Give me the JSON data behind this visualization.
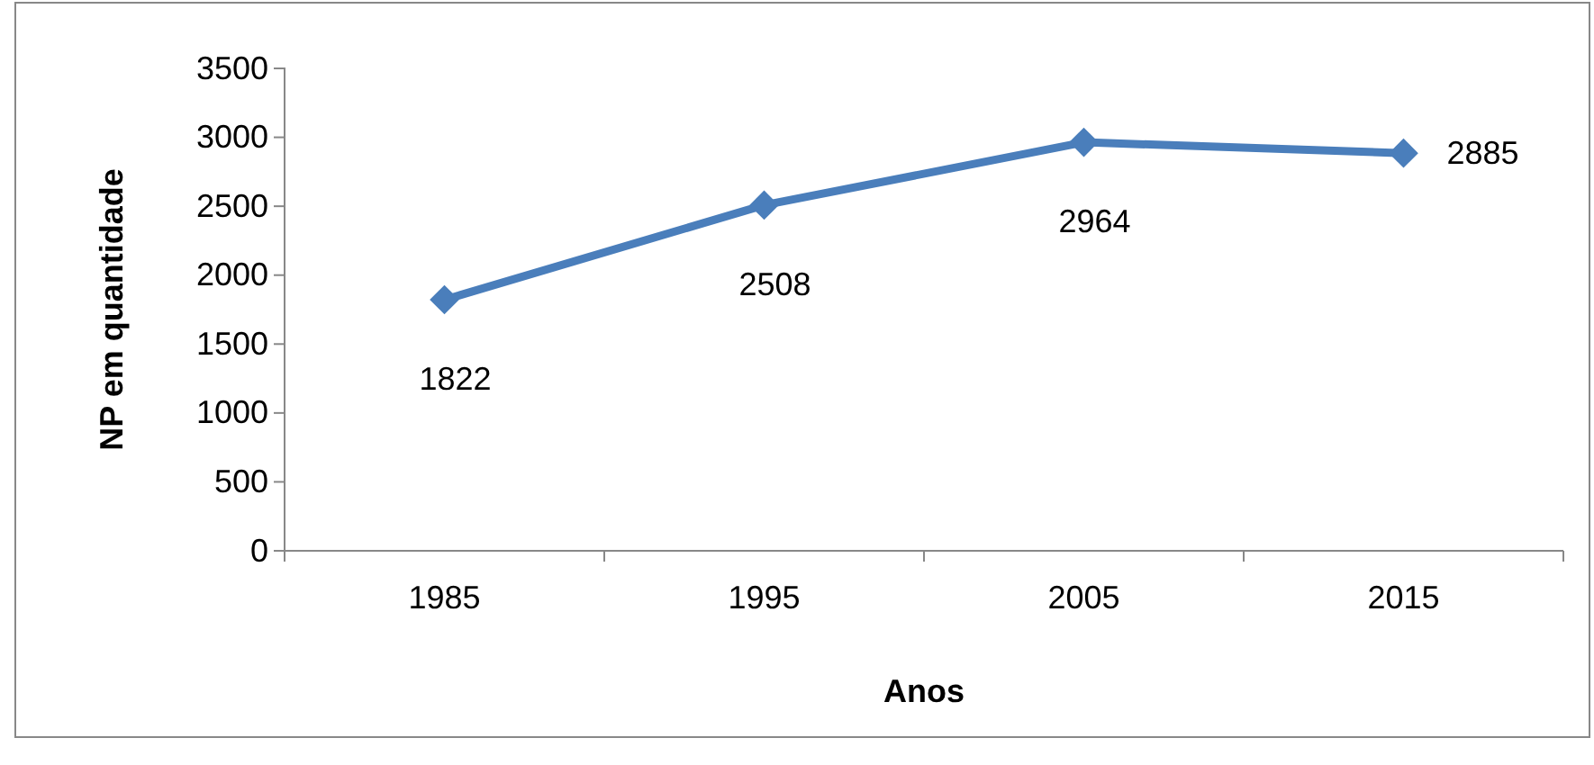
{
  "chart_data": {
    "type": "line",
    "xlabel": "Anos",
    "ylabel": "NP em quantidade",
    "categories": [
      "1985",
      "1995",
      "2005",
      "2015"
    ],
    "series": [
      {
        "color": "#4a7ebb",
        "values": [
          1822,
          2508,
          2964,
          2885
        ]
      }
    ],
    "ylim": [
      0,
      3500
    ],
    "yticks": [
      0,
      500,
      1000,
      1500,
      2000,
      2500,
      3000,
      3500
    ],
    "marker": "diamond",
    "line_style": "solid",
    "data_labels": true
  }
}
